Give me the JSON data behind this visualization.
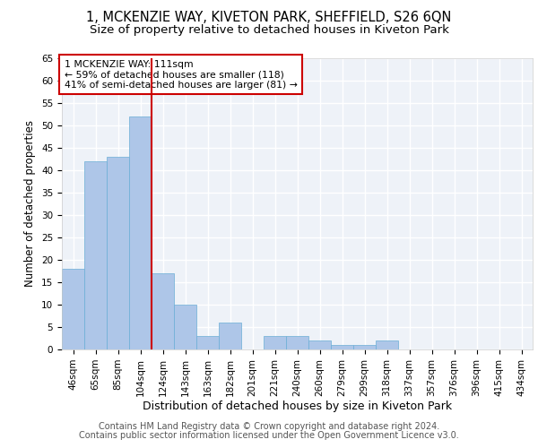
{
  "title1": "1, MCKENZIE WAY, KIVETON PARK, SHEFFIELD, S26 6QN",
  "title2": "Size of property relative to detached houses in Kiveton Park",
  "xlabel": "Distribution of detached houses by size in Kiveton Park",
  "ylabel": "Number of detached properties",
  "footer1": "Contains HM Land Registry data © Crown copyright and database right 2024.",
  "footer2": "Contains public sector information licensed under the Open Government Licence v3.0.",
  "annotation_line1": "1 MCKENZIE WAY: 111sqm",
  "annotation_line2": "← 59% of detached houses are smaller (118)",
  "annotation_line3": "41% of semi-detached houses are larger (81) →",
  "bar_labels": [
    "46sqm",
    "65sqm",
    "85sqm",
    "104sqm",
    "124sqm",
    "143sqm",
    "163sqm",
    "182sqm",
    "201sqm",
    "221sqm",
    "240sqm",
    "260sqm",
    "279sqm",
    "299sqm",
    "318sqm",
    "337sqm",
    "357sqm",
    "376sqm",
    "396sqm",
    "415sqm",
    "434sqm"
  ],
  "bar_values": [
    18,
    42,
    43,
    52,
    17,
    10,
    3,
    6,
    0,
    3,
    3,
    2,
    1,
    1,
    2,
    0,
    0,
    0,
    0,
    0,
    0
  ],
  "bar_color": "#aec6e8",
  "bar_edgecolor": "#6aaed6",
  "vline_x": 3.5,
  "vline_color": "#cc0000",
  "ylim": [
    0,
    65
  ],
  "yticks": [
    0,
    5,
    10,
    15,
    20,
    25,
    30,
    35,
    40,
    45,
    50,
    55,
    60,
    65
  ],
  "bg_color": "#eef2f8",
  "grid_color": "#ffffff",
  "annotation_box_color": "#ffffff",
  "annotation_box_edgecolor": "#cc0000",
  "title_fontsize": 10.5,
  "subtitle_fontsize": 9.5,
  "tick_fontsize": 7.5,
  "footer_fontsize": 7.0,
  "ylabel_fontsize": 8.5,
  "xlabel_fontsize": 9.0
}
